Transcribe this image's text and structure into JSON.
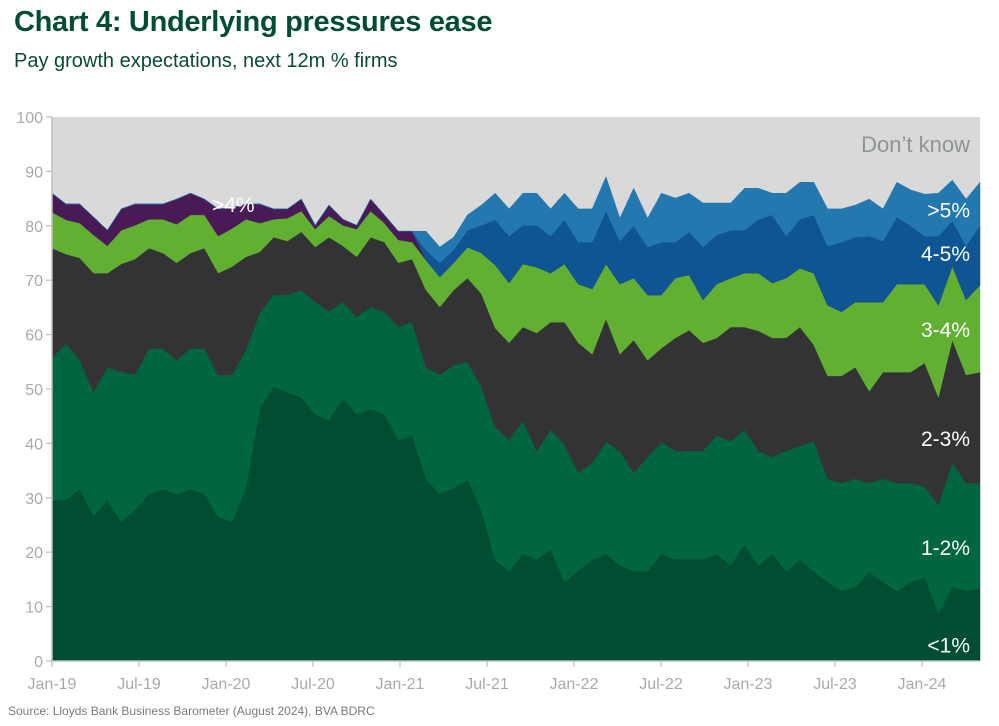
{
  "title": "Chart 4: Underlying pressures ease",
  "subtitle": "Pay growth expectations, next 12m % firms",
  "source": "Source: Lloyds Bank Business Barometer (August 2024), BVA BDRC",
  "chart_data": {
    "type": "area",
    "stacked": true,
    "title": "Chart 4: Underlying pressures ease",
    "subtitle": "Pay growth expectations, next 12m % firms",
    "xlabel": "",
    "ylabel": "% firms",
    "ylim": [
      0,
      100
    ],
    "yticks": [
      0,
      10,
      20,
      30,
      40,
      50,
      60,
      70,
      80,
      90,
      100
    ],
    "x_range_months": [
      0,
      64
    ],
    "x_ticks": [
      {
        "label": "Jan-19",
        "month": 0
      },
      {
        "label": "Jul-19",
        "month": 6
      },
      {
        "label": "Jan-20",
        "month": 12
      },
      {
        "label": "Jul-20",
        "month": 18
      },
      {
        "label": "Jan-21",
        "month": 24
      },
      {
        "label": "Jul-21",
        "month": 30
      },
      {
        "label": "Jan-22",
        "month": 36
      },
      {
        "label": "Jul-22",
        "month": 42
      },
      {
        "label": "Jan-23",
        "month": 48
      },
      {
        "label": "Jul-23",
        "month": 54
      },
      {
        "label": "Jan-24",
        "month": 60
      }
    ],
    "grid": false,
    "legend": "inline-labels-right",
    "series": [
      {
        "name": "<1%",
        "color": "#004d32",
        "label": "<1%",
        "cumulative_top": [
          29.6,
          29.6,
          31.6,
          26.7,
          29.6,
          25.6,
          27.8,
          30.7,
          31.6,
          30.7,
          31.6,
          30.7,
          26.5,
          25.6,
          31.8,
          46.5,
          50.4,
          49.4,
          48.5,
          45.4,
          44.3,
          48.3,
          45.4,
          46.3,
          45.4,
          40.6,
          41.5,
          33.5,
          30.7,
          31.8,
          33.3,
          27.8,
          18.6,
          16.5,
          19.7,
          18.7,
          20.6,
          14.5,
          16.7,
          18.6,
          19.7,
          17.6,
          16.5,
          16.5,
          19.7,
          18.7,
          18.7,
          18.7,
          19.7,
          17.6,
          21.5,
          17.6,
          19.7,
          16.5,
          18.6,
          16.5,
          14.5,
          12.9,
          13.6,
          16.4,
          14.5,
          12.9,
          14.5,
          15.4,
          8.8,
          13.6,
          12.9,
          13.4
        ]
      },
      {
        "name": "1-2%",
        "color": "#006640",
        "label": "1-2%",
        "cumulative_top": [
          55.7,
          58.3,
          55.3,
          49.4,
          54,
          53.1,
          52.6,
          57.4,
          57.4,
          55.3,
          57.4,
          57.4,
          52.6,
          52.6,
          57.2,
          64,
          67.3,
          67.3,
          68.2,
          66,
          64.2,
          66,
          63.2,
          65.1,
          64.2,
          61.4,
          62.3,
          54,
          52.6,
          54.4,
          55,
          50.4,
          43,
          40.6,
          44.1,
          38.6,
          42.5,
          39.7,
          34.6,
          36.4,
          40.3,
          38.6,
          34.6,
          37.5,
          40.3,
          38.6,
          38.6,
          38.6,
          41.5,
          40.4,
          42.5,
          38.6,
          37.5,
          38.6,
          39.5,
          40.4,
          33.5,
          32.7,
          33.5,
          32.7,
          33.5,
          32.7,
          32.7,
          32,
          28.7,
          36.4,
          32.7,
          32.7
        ]
      },
      {
        "name": "2-3%",
        "color": "#333335",
        "label": "2-3%",
        "cumulative_top": [
          75.9,
          74.8,
          74.1,
          71.3,
          71.3,
          73,
          73.9,
          75.9,
          75,
          73.2,
          75,
          75.9,
          71.3,
          72.5,
          74.3,
          75.2,
          77.9,
          77.2,
          78.9,
          76.1,
          77.9,
          76.3,
          74.3,
          77.9,
          77,
          73.2,
          73.9,
          68.2,
          65.1,
          68.2,
          70.4,
          67.5,
          61.2,
          58.5,
          61.4,
          60.3,
          62.3,
          62.3,
          58.5,
          56.4,
          62.9,
          56.4,
          59,
          55.3,
          57.5,
          59.4,
          60.8,
          58.5,
          59.4,
          61.4,
          61.4,
          60.7,
          59.4,
          59.4,
          61.4,
          58.1,
          52.4,
          52.4,
          54,
          49.6,
          53.1,
          53.1,
          53.1,
          54.8,
          48.5,
          59,
          52.6,
          53.1
        ]
      },
      {
        "name": "3-4%",
        "color": "#62b032",
        "label": "3-4%",
        "cumulative_top": [
          82.5,
          81.1,
          80.5,
          78.3,
          76.3,
          79.2,
          80.1,
          81.2,
          81.2,
          80.3,
          82,
          82,
          78.1,
          79.5,
          81.2,
          80.5,
          81.2,
          81.4,
          82.7,
          79.4,
          81.8,
          80.1,
          79.4,
          82.7,
          80.5,
          77.4,
          77,
          73.7,
          70.6,
          73.2,
          76.1,
          75,
          72.8,
          69.5,
          73,
          72.4,
          71.3,
          73,
          69.3,
          68.4,
          73,
          69.3,
          70.4,
          67.3,
          67.3,
          70.4,
          71,
          66.4,
          69.3,
          70.4,
          71.3,
          71.3,
          69.5,
          70.4,
          72.2,
          71.3,
          65.4,
          64.2,
          66,
          66,
          66,
          69.3,
          69.3,
          69.3,
          65.4,
          72.6,
          66.4,
          69.1
        ]
      },
      {
        "name": ">4%",
        "color": "#4a1a57",
        "label": ">4%",
        "cumulative_top": [
          86,
          84,
          84,
          81.6,
          79.2,
          83.1,
          84,
          84,
          84,
          84.9,
          86,
          84.9,
          83.1,
          83.3,
          84,
          84,
          83.1,
          83.1,
          84.9,
          80.1,
          83.8,
          81.2,
          80.1,
          84.9,
          82,
          79,
          79,
          73.7,
          70.6,
          73.2,
          76.1,
          75,
          72.8,
          69.5,
          73,
          72.4,
          71.3,
          73,
          69.3,
          68.4,
          73,
          69.3,
          70.4,
          67.3,
          67.3,
          70.4,
          71,
          66.4,
          69.3,
          70.4,
          71.3,
          71.3,
          69.5,
          70.4,
          72.2,
          71.3,
          65.4,
          64.2,
          66,
          66,
          66,
          69.3,
          69.3,
          69.3,
          65.4,
          72.6,
          66.4,
          69.1
        ]
      },
      {
        "name": "4-5%",
        "color": "#0f5594",
        "label": "4-5%",
        "cumulative_top": [
          86,
          84,
          84,
          81.6,
          79.2,
          83.1,
          84,
          84,
          84,
          84.9,
          86,
          84.9,
          83.1,
          83.3,
          84,
          84,
          83.1,
          83.1,
          84.9,
          80.1,
          83.8,
          81.2,
          80.1,
          84.9,
          82,
          79,
          79,
          75.5,
          73.2,
          75.6,
          79.2,
          80.1,
          81.1,
          78.1,
          80.1,
          80.1,
          78.1,
          81.1,
          77,
          77,
          82.7,
          77.2,
          80,
          76.1,
          77,
          77,
          78.9,
          76.1,
          78.3,
          79.2,
          79.2,
          81.2,
          82,
          78.1,
          81.2,
          82,
          76.3,
          77,
          77.9,
          78.1,
          77.2,
          81.6,
          80,
          78.1,
          78.1,
          80.9,
          76.3,
          80.1
        ]
      },
      {
        "name": ">5%",
        "color": "#2378b0",
        "label": ">5%",
        "cumulative_top": [
          86,
          84,
          84,
          81.6,
          79.2,
          83.1,
          84,
          84,
          84,
          84.9,
          86,
          84.9,
          83.1,
          83.3,
          84,
          84,
          83.1,
          83.1,
          84.9,
          80.1,
          83.8,
          81.2,
          80.1,
          84.9,
          82,
          79,
          79,
          79,
          76.1,
          77.9,
          82,
          83.8,
          86,
          83.1,
          86,
          86,
          83.1,
          86,
          83.1,
          83.1,
          89,
          81.4,
          86.9,
          81.4,
          86,
          85.1,
          86,
          84.2,
          84.2,
          84.2,
          86.9,
          86.9,
          86,
          86,
          88,
          88,
          83.1,
          83.1,
          83.8,
          84.9,
          83.1,
          88,
          86.6,
          85.8,
          86,
          88.4,
          84.9,
          88
        ]
      },
      {
        "name": "Don't know",
        "color": "#d9d9d9",
        "label": "Don’t know",
        "fills_to": 100
      }
    ],
    "inline_labels": [
      {
        "series": ">4%",
        "text": ">4%",
        "at_month": 12.5,
        "value": 84
      },
      {
        "series": ">5%",
        "text": ">5%",
        "at_month": 62.5,
        "value": 83
      },
      {
        "series": "4-5%",
        "text": "4-5%",
        "at_month": 62.5,
        "value": 75
      },
      {
        "series": "3-4%",
        "text": "3-4%",
        "at_month": 62.5,
        "value": 61
      },
      {
        "series": "2-3%",
        "text": "2-3%",
        "at_month": 62.5,
        "value": 41
      },
      {
        "series": "1-2%",
        "text": "1-2%",
        "at_month": 62.5,
        "value": 21
      },
      {
        "series": "<1%",
        "text": "<1%",
        "at_month": 62.5,
        "value": 3
      },
      {
        "series": "Don't know",
        "text": "Don’t know",
        "at_month": 62.5,
        "value": 95
      }
    ],
    "axis_color": "#bdbdbd",
    "tick_label_color": "#a9a9a9"
  }
}
